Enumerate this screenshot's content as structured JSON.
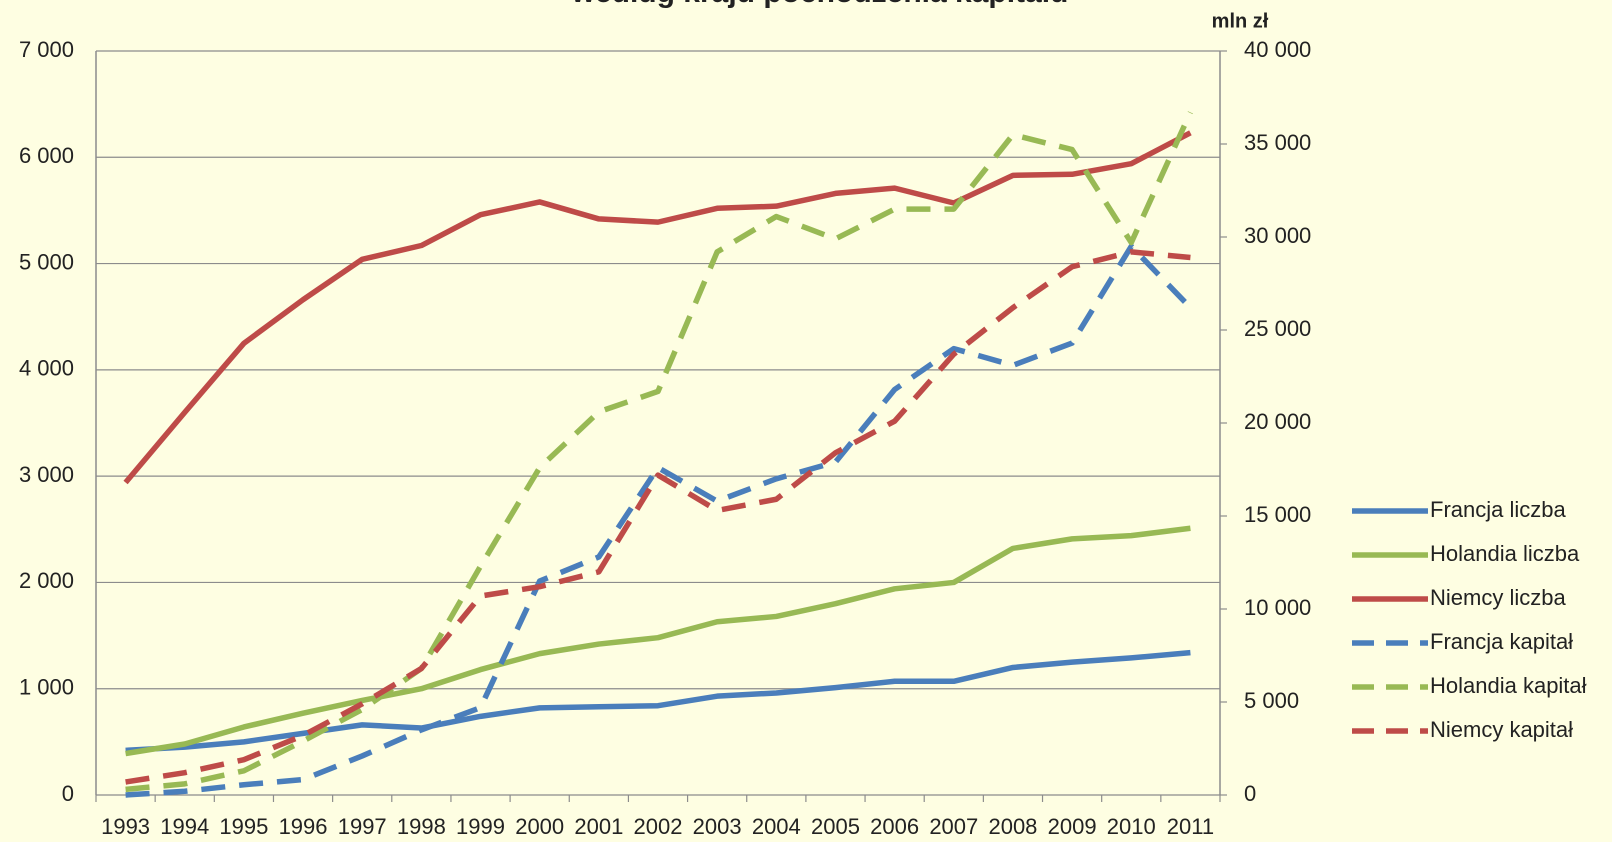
{
  "chart_data": {
    "type": "line",
    "title": "według kraju pochodzenia kapitału",
    "y2_label": "mln zł",
    "categories": [
      "1993",
      "1994",
      "1995",
      "1996",
      "1997",
      "1998",
      "1999",
      "2000",
      "2001",
      "2002",
      "2003",
      "2004",
      "2005",
      "2006",
      "2007",
      "2008",
      "2009",
      "2010",
      "2011"
    ],
    "ylim": [
      0,
      7000
    ],
    "yticks": [
      0,
      {
        "value": 1000,
        "label": "1 000"
      },
      {
        "value": 2000,
        "label": "2 000"
      },
      {
        "value": 3000,
        "label": "3 000"
      },
      {
        "value": 4000,
        "label": "4 000"
      },
      {
        "value": 5000,
        "label": "5 000"
      },
      {
        "value": 6000,
        "label": "6 000"
      },
      {
        "value": 7000,
        "label": "7 000"
      }
    ],
    "y2lim": [
      0,
      40000
    ],
    "y2ticks": [
      0,
      {
        "value": 5000,
        "label": "5 000"
      },
      {
        "value": 10000,
        "label": "10 000"
      },
      {
        "value": 15000,
        "label": "15 000"
      },
      {
        "value": 20000,
        "label": "20 000"
      },
      {
        "value": 25000,
        "label": "25 000"
      },
      {
        "value": 30000,
        "label": "30 000"
      },
      {
        "value": 35000,
        "label": "35 000"
      },
      {
        "value": 40000,
        "label": "40 000"
      }
    ],
    "grid": true,
    "legend": "right",
    "series": [
      {
        "name": "Francja liczba",
        "color": "#4a7ebb",
        "dash": false,
        "values": [
          420,
          450,
          500,
          580,
          660,
          630,
          740,
          820,
          830,
          840,
          930,
          960,
          1010,
          1070,
          1070,
          1200,
          1250,
          1290,
          1340
        ]
      },
      {
        "name": "Holandia liczba",
        "color": "#98b954",
        "dash": false,
        "values": [
          390,
          480,
          640,
          770,
          890,
          1000,
          1180,
          1330,
          1420,
          1480,
          1630,
          1680,
          1800,
          1940,
          2000,
          2320,
          2410,
          2440,
          2510
        ]
      },
      {
        "name": "Niemcy liczba",
        "color": "#be4b48",
        "dash": false,
        "values": [
          2940,
          3600,
          4250,
          4660,
          5040,
          5170,
          5460,
          5580,
          5420,
          5390,
          5520,
          5540,
          5660,
          5710,
          5570,
          5830,
          5840,
          5940,
          6230
        ]
      },
      {
        "name": "Francja kapitał",
        "color": "#4a7ebb",
        "dash": true,
        "axis": "y2",
        "values": [
          0,
          200,
          550,
          830,
          2100,
          3500,
          4700,
          11500,
          12800,
          17600,
          15800,
          17000,
          17900,
          21800,
          24000,
          23100,
          24300,
          29500,
          26200
        ]
      },
      {
        "name": "Holandia kapitał",
        "color": "#98b954",
        "dash": true,
        "axis": "y2",
        "values": [
          300,
          600,
          1300,
          2900,
          4600,
          6800,
          12300,
          17600,
          20600,
          21700,
          29200,
          31100,
          29900,
          31500,
          31500,
          35500,
          34700,
          29700,
          36700
        ]
      },
      {
        "name": "Niemcy kapitał",
        "color": "#be4b48",
        "dash": true,
        "axis": "y2",
        "values": [
          700,
          1200,
          1900,
          3200,
          4900,
          6800,
          10700,
          11200,
          12000,
          17200,
          15300,
          15900,
          18400,
          20100,
          23700,
          26200,
          28400,
          29200,
          28900
        ]
      }
    ]
  }
}
